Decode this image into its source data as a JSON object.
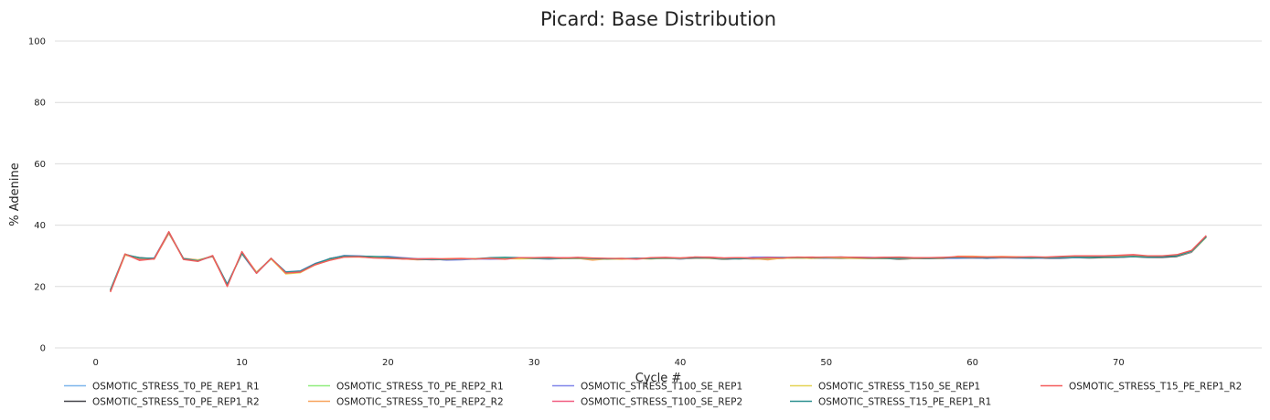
{
  "chart_data": {
    "type": "line",
    "title": "Picard: Base Distribution",
    "xlabel": "Cycle #",
    "ylabel": "% Adenine",
    "xlim": [
      -2.8,
      79.8
    ],
    "ylim": [
      0,
      100
    ],
    "xticks": [
      0,
      10,
      20,
      30,
      40,
      50,
      60,
      70
    ],
    "yticks": [
      0,
      20,
      40,
      60,
      80,
      100
    ],
    "grid": "horizontal",
    "legend_position": "bottom",
    "x": [
      1,
      2,
      3,
      4,
      5,
      6,
      7,
      8,
      9,
      10,
      11,
      12,
      13,
      14,
      15,
      16,
      17,
      18,
      19,
      20,
      21,
      22,
      23,
      24,
      25,
      26,
      27,
      28,
      29,
      30,
      31,
      32,
      33,
      34,
      35,
      36,
      37,
      38,
      39,
      40,
      41,
      42,
      43,
      44,
      45,
      46,
      47,
      48,
      49,
      50,
      51,
      52,
      53,
      54,
      55,
      56,
      57,
      58,
      59,
      60,
      61,
      62,
      63,
      64,
      65,
      66,
      67,
      68,
      69,
      70,
      71,
      72,
      73,
      74,
      75,
      76
    ],
    "series": [
      {
        "name": "OSMOTIC_STRESS_T0_PE_REP1_R1",
        "color": "#7cb5ec",
        "values": [
          18.8,
          30.4,
          29.2,
          29.0,
          37.6,
          29.0,
          28.5,
          29.9,
          20.7,
          30.7,
          24.5,
          29.0,
          24.6,
          24.8,
          27.3,
          28.9,
          29.8,
          29.8,
          29.6,
          29.6,
          29.2,
          28.9,
          28.9,
          28.8,
          29.0,
          29.0,
          29.3,
          29.2,
          29.3,
          29.2,
          29.3,
          29.2,
          29.3,
          29.1,
          29.0,
          29.1,
          29.1,
          29.2,
          29.3,
          29.3,
          29.4,
          29.3,
          29.1,
          29.2,
          29.3,
          29.4,
          29.3,
          29.4,
          29.3,
          29.3,
          29.4,
          29.3,
          29.3,
          29.2,
          29.2,
          29.2,
          29.2,
          29.3,
          29.5,
          29.5,
          29.5,
          29.6,
          29.6,
          29.5,
          29.5,
          29.5,
          29.6,
          29.6,
          29.7,
          29.8,
          30.0,
          29.8,
          29.9,
          30.2,
          31.5,
          36.0
        ]
      },
      {
        "name": "OSMOTIC_STRESS_T0_PE_REP1_R2",
        "color": "#434348",
        "values": [
          18.5,
          30.3,
          29.4,
          29.1,
          37.4,
          29.1,
          28.6,
          29.8,
          20.4,
          31.0,
          24.6,
          29.1,
          24.7,
          24.9,
          27.2,
          29.1,
          30.0,
          29.9,
          29.5,
          29.5,
          29.0,
          28.8,
          28.9,
          28.7,
          28.9,
          29.1,
          29.2,
          29.1,
          29.2,
          29.1,
          29.0,
          29.1,
          29.2,
          29.0,
          29.1,
          29.0,
          29.2,
          29.1,
          29.2,
          29.0,
          29.2,
          29.2,
          28.9,
          29.1,
          29.0,
          29.1,
          29.2,
          29.3,
          29.2,
          29.3,
          29.2,
          29.2,
          29.1,
          29.2,
          28.9,
          29.1,
          29.1,
          29.2,
          29.3,
          29.3,
          29.2,
          29.4,
          29.3,
          29.4,
          29.2,
          29.2,
          29.4,
          29.3,
          29.4,
          29.5,
          29.7,
          29.5,
          29.5,
          29.8,
          31.2,
          36.2
        ]
      },
      {
        "name": "OSMOTIC_STRESS_T0_PE_REP2_R1",
        "color": "#90ed7d",
        "values": [
          19.0,
          30.6,
          29.0,
          29.2,
          37.7,
          28.9,
          28.4,
          30.0,
          20.6,
          30.8,
          24.4,
          29.2,
          24.5,
          25.0,
          27.4,
          28.8,
          29.9,
          29.7,
          29.5,
          29.4,
          29.1,
          29.0,
          28.8,
          28.9,
          29.1,
          28.9,
          29.3,
          29.4,
          29.3,
          29.1,
          29.2,
          29.1,
          29.4,
          29.2,
          29.1,
          29.2,
          29.0,
          29.3,
          29.4,
          29.2,
          29.3,
          29.4,
          29.0,
          29.3,
          29.4,
          29.3,
          29.2,
          29.5,
          29.4,
          29.4,
          29.5,
          29.4,
          29.2,
          29.3,
          29.1,
          29.3,
          29.3,
          29.2,
          29.4,
          29.6,
          29.6,
          29.5,
          29.7,
          29.4,
          29.6,
          29.4,
          29.7,
          29.5,
          29.6,
          29.7,
          29.9,
          29.9,
          29.8,
          30.1,
          31.4,
          36.1
        ]
      },
      {
        "name": "OSMOTIC_STRESS_T0_PE_REP2_R2",
        "color": "#f7a35c",
        "values": [
          18.3,
          30.2,
          29.3,
          28.9,
          37.3,
          29.2,
          28.7,
          29.7,
          20.3,
          31.2,
          24.7,
          29.0,
          24.3,
          24.6,
          27.0,
          28.6,
          29.6,
          29.6,
          29.4,
          29.1,
          29.0,
          28.7,
          28.8,
          29.1,
          29.2,
          29.0,
          29.0,
          29.3,
          29.2,
          29.3,
          29.3,
          29.3,
          29.2,
          28.6,
          29.0,
          28.9,
          29.1,
          29.0,
          29.3,
          29.3,
          29.6,
          29.4,
          29.2,
          29.0,
          29.1,
          28.7,
          29.3,
          29.4,
          29.5,
          29.5,
          29.4,
          29.2,
          29.2,
          29.4,
          29.0,
          29.1,
          29.2,
          29.1,
          29.9,
          29.9,
          29.7,
          29.8,
          29.7,
          29.5,
          29.3,
          29.6,
          29.5,
          29.5,
          29.5,
          29.6,
          29.8,
          29.7,
          29.8,
          30.0,
          31.3,
          36.4
        ]
      },
      {
        "name": "OSMOTIC_STRESS_T100_SE_REP1",
        "color": "#8085e9",
        "values": [
          18.9,
          30.5,
          29.1,
          29.3,
          37.8,
          29.0,
          28.3,
          29.9,
          20.8,
          30.6,
          24.3,
          29.1,
          24.8,
          25.1,
          27.5,
          29.0,
          30.1,
          30.0,
          29.7,
          29.8,
          29.4,
          29.1,
          29.0,
          28.6,
          28.7,
          29.0,
          28.9,
          29.0,
          29.2,
          29.1,
          29.0,
          29.2,
          29.4,
          29.2,
          29.1,
          29.1,
          29.2,
          29.1,
          29.2,
          29.0,
          29.2,
          29.3,
          29.2,
          29.1,
          29.6,
          29.6,
          29.5,
          29.3,
          29.4,
          29.3,
          29.4,
          29.5,
          29.5,
          29.2,
          29.3,
          29.4,
          29.3,
          29.2,
          29.2,
          29.3,
          29.2,
          29.3,
          29.3,
          29.2,
          29.3,
          29.3,
          29.4,
          29.5,
          29.7,
          29.6,
          29.8,
          29.8,
          29.7,
          30.1,
          31.3,
          36.3
        ]
      },
      {
        "name": "OSMOTIC_STRESS_T100_SE_REP2",
        "color": "#f15c80",
        "values": [
          18.6,
          30.4,
          28.8,
          29.0,
          37.5,
          29.1,
          28.5,
          29.8,
          20.5,
          30.9,
          24.5,
          29.1,
          24.6,
          24.9,
          27.3,
          28.8,
          29.8,
          29.8,
          29.6,
          29.5,
          29.3,
          28.9,
          28.7,
          28.8,
          29.0,
          29.1,
          29.1,
          29.0,
          29.3,
          29.2,
          29.3,
          29.4,
          29.3,
          29.1,
          29.0,
          29.2,
          28.9,
          29.3,
          29.4,
          29.2,
          29.6,
          29.6,
          29.3,
          29.4,
          29.3,
          29.2,
          29.4,
          29.5,
          29.6,
          29.4,
          29.6,
          29.5,
          29.4,
          29.5,
          29.4,
          29.2,
          29.3,
          29.3,
          29.5,
          29.5,
          29.4,
          29.6,
          29.5,
          29.6,
          29.5,
          29.7,
          29.8,
          29.9,
          29.9,
          30.0,
          30.2,
          29.9,
          29.9,
          30.3,
          31.7,
          36.5
        ]
      },
      {
        "name": "OSMOTIC_STRESS_T150_SE_REP1",
        "color": "#e4d354",
        "values": [
          18.7,
          30.3,
          29.2,
          29.1,
          37.6,
          29.0,
          28.6,
          29.9,
          20.6,
          30.7,
          24.6,
          29.0,
          24.1,
          24.5,
          27.2,
          28.7,
          29.7,
          29.7,
          29.5,
          29.3,
          29.1,
          29.0,
          28.9,
          28.8,
          29.0,
          29.1,
          29.2,
          29.1,
          29.0,
          29.1,
          29.2,
          29.1,
          29.2,
          29.0,
          28.9,
          29.0,
          29.1,
          29.0,
          29.2,
          29.1,
          29.3,
          29.2,
          29.1,
          29.2,
          29.0,
          29.1,
          29.2,
          29.3,
          29.2,
          29.4,
          29.3,
          29.2,
          29.2,
          29.1,
          29.2,
          29.3,
          29.2,
          29.3,
          29.6,
          29.4,
          29.5,
          29.4,
          29.5,
          29.3,
          29.4,
          29.5,
          29.6,
          29.6,
          29.6,
          29.7,
          29.9,
          29.7,
          29.8,
          30.0,
          31.4,
          36.1
        ]
      },
      {
        "name": "OSMOTIC_STRESS_T15_PE_REP1_R1",
        "color": "#2b908f",
        "values": [
          18.8,
          30.5,
          29.3,
          29.2,
          37.7,
          29.1,
          28.4,
          30.0,
          20.7,
          30.8,
          24.4,
          29.2,
          24.7,
          25.0,
          27.4,
          29.0,
          30.0,
          29.9,
          29.8,
          29.6,
          29.2,
          28.9,
          28.8,
          28.8,
          29.0,
          29.0,
          29.4,
          29.5,
          29.4,
          29.2,
          29.1,
          29.2,
          29.3,
          29.1,
          29.0,
          29.1,
          29.2,
          29.1,
          29.3,
          29.2,
          29.4,
          29.3,
          29.1,
          29.0,
          29.2,
          29.3,
          29.4,
          29.5,
          29.4,
          29.5,
          29.6,
          29.4,
          29.3,
          29.2,
          29.1,
          29.3,
          29.2,
          29.3,
          29.4,
          29.4,
          29.3,
          29.5,
          29.4,
          29.3,
          29.4,
          29.4,
          29.5,
          29.5,
          29.6,
          29.6,
          29.8,
          29.6,
          29.7,
          30.0,
          31.5,
          36.2
        ]
      },
      {
        "name": "OSMOTIC_STRESS_T15_PE_REP1_R2",
        "color": "#f45b5b",
        "values": [
          18.2,
          30.6,
          28.5,
          29.0,
          37.9,
          28.8,
          28.2,
          30.1,
          20.0,
          31.4,
          24.3,
          29.2,
          24.4,
          24.7,
          27.1,
          28.5,
          29.6,
          29.7,
          29.3,
          29.2,
          29.0,
          29.0,
          29.1,
          29.0,
          29.1,
          29.0,
          29.2,
          28.9,
          29.4,
          29.4,
          29.5,
          29.3,
          29.5,
          29.3,
          29.2,
          29.1,
          29.0,
          29.4,
          29.5,
          29.3,
          29.6,
          29.5,
          29.3,
          29.4,
          29.2,
          29.4,
          29.3,
          29.6,
          29.5,
          29.6,
          29.6,
          29.5,
          29.4,
          29.5,
          29.6,
          29.4,
          29.4,
          29.5,
          29.7,
          29.6,
          29.6,
          29.6,
          29.6,
          29.7,
          29.6,
          29.8,
          30.0,
          30.0,
          30.0,
          30.2,
          30.4,
          30.0,
          30.0,
          30.4,
          31.8,
          36.6
        ]
      }
    ]
  }
}
